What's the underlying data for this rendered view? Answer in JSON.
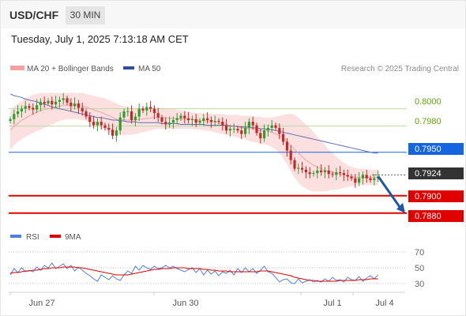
{
  "header": {
    "symbol": "USD/CHF",
    "timeframe": "30 MIN",
    "datetime": "Tuesday, July 1, 2025 7:13:18 AM CET"
  },
  "watermark": "Research © 2025 Trading Central",
  "colors": {
    "candle_up": "#2e9e2e",
    "candle_down": "#c62828",
    "bands_fill": "#fbdada",
    "ma20": "#f4a0a0",
    "ma50": "#5a6fb5",
    "support": "#e00000",
    "resistance_line": "#b7dca0",
    "resistance_text": "#64a30a",
    "pivot_box": "#1565e0",
    "price_box": "#333333",
    "forecast_arrow": "#1f56a8",
    "rsi": "#4d7fe0",
    "rsi_ma": "#e00000"
  },
  "chart_data": [
    {
      "type": "candlestick",
      "x_ticks": [
        "Jun 27",
        "Jun 30",
        "Jul 1",
        "Jul 4"
      ],
      "ylim": [
        0.7868,
        0.8036
      ],
      "legend": [
        {
          "label": "MA 20 + Bollinger Bands",
          "color": "#f4a0a0"
        },
        {
          "label": "MA 50",
          "color": "#5a6fb5"
        }
      ],
      "levels": [
        {
          "value": 0.8,
          "label": "0.8000",
          "kind": "resistance"
        },
        {
          "value": 0.798,
          "label": "0.7980",
          "kind": "resistance"
        },
        {
          "value": 0.795,
          "label": "0.7950",
          "kind": "pivot"
        },
        {
          "value": 0.7924,
          "label": "0.7924",
          "kind": "last_price"
        },
        {
          "value": 0.79,
          "label": "0.7900",
          "kind": "support"
        },
        {
          "value": 0.788,
          "label": "0.7880",
          "kind": "support"
        }
      ],
      "forecast": {
        "from": 0.7922,
        "to": 0.788
      },
      "close_series": [
        0.7988,
        0.7994,
        0.7997,
        0.8,
        0.8003,
        0.8001,
        0.7999,
        0.8004,
        0.8008,
        0.8006,
        0.8009,
        0.8005,
        0.8008,
        0.801,
        0.8012,
        0.8007,
        0.8003,
        0.8006,
        0.8001,
        0.7997,
        0.7991,
        0.7985,
        0.7981,
        0.7985,
        0.7981,
        0.7978,
        0.7976,
        0.7969,
        0.7975,
        0.799,
        0.7997,
        0.7997,
        0.7987,
        0.7991,
        0.8,
        0.7998,
        0.8002,
        0.8,
        0.7995,
        0.799,
        0.7985,
        0.7982,
        0.7984,
        0.7987,
        0.7989,
        0.7992,
        0.7989,
        0.7987,
        0.7988,
        0.7984,
        0.7986,
        0.7989,
        0.7987,
        0.7985,
        0.7986,
        0.7985,
        0.7981,
        0.7975,
        0.7977,
        0.7977,
        0.7975,
        0.7971,
        0.7978,
        0.7985,
        0.7981,
        0.7972,
        0.7966,
        0.7975,
        0.7978,
        0.7981,
        0.7978,
        0.7971,
        0.7962,
        0.7952,
        0.7941,
        0.7931,
        0.7932,
        0.793,
        0.7927,
        0.7925,
        0.7926,
        0.7929,
        0.7927,
        0.7929,
        0.7925,
        0.7924,
        0.7927,
        0.7926,
        0.7924,
        0.7922,
        0.792,
        0.7915,
        0.792,
        0.7924,
        0.792,
        0.7918,
        0.792,
        0.7922
      ],
      "ma20": [
        0.7975,
        0.798,
        0.7983,
        0.7987,
        0.7989,
        0.7992,
        0.7994,
        0.7996,
        0.7998,
        0.7999,
        0.8,
        0.8001,
        0.8002,
        0.8003,
        0.8004,
        0.8004,
        0.8004,
        0.8004,
        0.8004,
        0.8003,
        0.8002,
        0.8,
        0.7999,
        0.7997,
        0.7996,
        0.7994,
        0.7992,
        0.799,
        0.7988,
        0.7987,
        0.7987,
        0.7987,
        0.7987,
        0.7987,
        0.7988,
        0.7988,
        0.7989,
        0.7989,
        0.799,
        0.799,
        0.799,
        0.799,
        0.7989,
        0.7989,
        0.7989,
        0.7988,
        0.7988,
        0.7988,
        0.7988,
        0.7987,
        0.7987,
        0.7986,
        0.7986,
        0.7985,
        0.7985,
        0.7984,
        0.7983,
        0.7982,
        0.7981,
        0.798,
        0.7979,
        0.7978,
        0.7978,
        0.7977,
        0.7977,
        0.7976,
        0.7975,
        0.7975,
        0.7974,
        0.7973,
        0.7971,
        0.7969,
        0.7966,
        0.7962,
        0.7958,
        0.7953,
        0.7949,
        0.7945,
        0.7941,
        0.7938,
        0.7935,
        0.7933,
        0.7931,
        0.7929,
        0.7928,
        0.7927,
        0.7926,
        0.7925,
        0.7924,
        0.7923,
        0.7922,
        0.7921,
        0.7921,
        0.7921,
        0.7921,
        0.7921,
        0.7921,
        0.7921
      ],
      "band_upper": [
        0.7997,
        0.8002,
        0.8006,
        0.8009,
        0.8012,
        0.8014,
        0.8016,
        0.8017,
        0.8018,
        0.8018,
        0.8018,
        0.8018,
        0.8018,
        0.8018,
        0.8018,
        0.8018,
        0.8018,
        0.8018,
        0.8018,
        0.8018,
        0.8017,
        0.8016,
        0.8015,
        0.8014,
        0.8013,
        0.8012,
        0.801,
        0.8008,
        0.8006,
        0.8004,
        0.8003,
        0.8002,
        0.8001,
        0.8001,
        0.8001,
        0.8001,
        0.8001,
        0.8001,
        0.8001,
        0.8001,
        0.8001,
        0.8001,
        0.8,
        0.8,
        0.7999,
        0.7998,
        0.7998,
        0.7997,
        0.7996,
        0.7995,
        0.7995,
        0.7995,
        0.7994,
        0.7994,
        0.7994,
        0.7994,
        0.7994,
        0.7993,
        0.7993,
        0.7993,
        0.7993,
        0.7992,
        0.7992,
        0.7992,
        0.7991,
        0.7991,
        0.7991,
        0.799,
        0.799,
        0.799,
        0.7991,
        0.7992,
        0.7993,
        0.7994,
        0.7994,
        0.7993,
        0.799,
        0.7986,
        0.7982,
        0.7978,
        0.7973,
        0.7968,
        0.7963,
        0.7958,
        0.7953,
        0.7949,
        0.7945,
        0.7941,
        0.7938,
        0.7935,
        0.7933,
        0.7932,
        0.7931,
        0.7931,
        0.793,
        0.793,
        0.793,
        0.793
      ],
      "band_lower": [
        0.7953,
        0.7958,
        0.7962,
        0.7965,
        0.7968,
        0.797,
        0.7972,
        0.7974,
        0.7976,
        0.7978,
        0.798,
        0.7982,
        0.7984,
        0.7986,
        0.7987,
        0.7988,
        0.7988,
        0.7988,
        0.7988,
        0.7987,
        0.7986,
        0.7984,
        0.7982,
        0.798,
        0.7978,
        0.7976,
        0.7974,
        0.7972,
        0.7971,
        0.797,
        0.797,
        0.797,
        0.797,
        0.7971,
        0.7972,
        0.7973,
        0.7974,
        0.7975,
        0.7976,
        0.7977,
        0.7977,
        0.7977,
        0.7977,
        0.7977,
        0.7977,
        0.7977,
        0.7977,
        0.7977,
        0.7977,
        0.7976,
        0.7976,
        0.7975,
        0.7975,
        0.7974,
        0.7973,
        0.7972,
        0.7971,
        0.797,
        0.7969,
        0.7968,
        0.7967,
        0.7966,
        0.7965,
        0.7963,
        0.7962,
        0.7961,
        0.796,
        0.7959,
        0.7958,
        0.7956,
        0.7953,
        0.7949,
        0.7943,
        0.7936,
        0.7928,
        0.7921,
        0.7915,
        0.7911,
        0.7908,
        0.7906,
        0.7905,
        0.7905,
        0.7905,
        0.7905,
        0.7906,
        0.7907,
        0.7907,
        0.7908,
        0.7909,
        0.791,
        0.7911,
        0.7912,
        0.7912,
        0.7912,
        0.7912,
        0.7912,
        0.7912,
        0.7912
      ],
      "ma50": [
        0.8017,
        0.8015,
        0.8014,
        0.8013,
        0.8011,
        0.801,
        0.8009,
        0.8008,
        0.8006,
        0.8005,
        0.8004,
        0.8002,
        0.8001,
        0.8,
        0.7999,
        0.7998,
        0.7997,
        0.7996,
        0.7995,
        0.7994,
        0.7993,
        0.7992,
        0.7991,
        0.799,
        0.799,
        0.7989,
        0.7988,
        0.7987,
        0.7987,
        0.7986,
        0.7986,
        0.7985,
        0.7985,
        0.7985,
        0.7984,
        0.7984,
        0.7984,
        0.7984,
        0.7984,
        0.7984,
        0.7983,
        0.7983,
        0.7983,
        0.7983,
        0.7983,
        0.7982,
        0.7982,
        0.7982,
        0.7982,
        0.7982,
        0.7982,
        0.7982,
        0.7981,
        0.7981,
        0.7981,
        0.7981,
        0.7981,
        0.7981,
        0.798,
        0.798,
        0.798,
        0.7979,
        0.7979,
        0.7979,
        0.7978,
        0.7978,
        0.7977,
        0.7977,
        0.7976,
        0.7976,
        0.7975,
        0.7974,
        0.7973,
        0.7972,
        0.7971,
        0.797,
        0.7969,
        0.7968,
        0.7967,
        0.7966,
        0.7965,
        0.7964,
        0.7963,
        0.7962,
        0.7961,
        0.796,
        0.7959,
        0.7958,
        0.7957,
        0.7956,
        0.7955,
        0.7954,
        0.7953,
        0.7952,
        0.7951,
        0.795,
        0.7949,
        0.7949
      ]
    },
    {
      "type": "line",
      "legend": [
        {
          "label": "RSI",
          "color": "#4d7fe0"
        },
        {
          "label": "9MA",
          "color": "#e00000"
        }
      ],
      "ylim": [
        20,
        80
      ],
      "y_ticks": [
        30,
        50,
        70
      ],
      "series": [
        {
          "name": "RSI",
          "values": [
            41,
            49,
            44,
            50,
            45,
            47,
            45,
            51,
            47,
            53,
            50,
            56,
            49,
            52,
            55,
            49,
            53,
            46,
            51,
            47,
            43,
            40,
            36,
            33,
            41,
            38,
            35,
            40,
            36,
            34,
            41,
            46,
            43,
            52,
            47,
            53,
            50,
            48,
            52,
            49,
            50,
            53,
            50,
            52,
            49,
            47,
            45,
            48,
            50,
            44,
            49,
            41,
            47,
            42,
            46,
            40,
            45,
            43,
            47,
            41,
            49,
            44,
            50,
            45,
            49,
            43,
            47,
            52,
            45,
            43,
            38,
            32,
            35,
            36,
            31,
            30,
            36,
            31,
            33,
            35,
            32,
            34,
            32,
            36,
            33,
            38,
            34,
            35,
            32,
            38,
            35,
            34,
            39,
            33,
            37,
            40,
            36,
            41
          ]
        },
        {
          "name": "9MA",
          "values": [
            43,
            44,
            44,
            45,
            46,
            46,
            47,
            47,
            48,
            49,
            49,
            50,
            50,
            50,
            51,
            51,
            51,
            51,
            50,
            50,
            49,
            48,
            47,
            46,
            45,
            44,
            43,
            42,
            41,
            41,
            41,
            41,
            42,
            43,
            44,
            45,
            46,
            47,
            48,
            48,
            49,
            49,
            49,
            50,
            50,
            50,
            50,
            49,
            49,
            49,
            49,
            48,
            48,
            47,
            47,
            46,
            46,
            46,
            45,
            45,
            45,
            45,
            45,
            45,
            45,
            45,
            46,
            46,
            46,
            45,
            44,
            43,
            42,
            41,
            40,
            38,
            37,
            36,
            35,
            34,
            34,
            33,
            33,
            33,
            33,
            33,
            33,
            34,
            34,
            34,
            34,
            34,
            35,
            35,
            35,
            36,
            36,
            36
          ]
        }
      ]
    }
  ]
}
